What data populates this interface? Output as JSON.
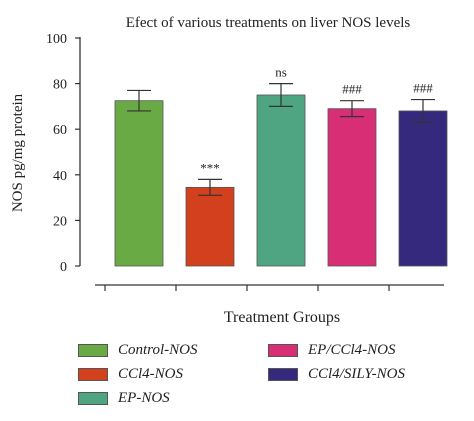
{
  "chart_data": {
    "type": "bar",
    "title": "Efect of various treatments on liver NOS levels",
    "xlabel": "Treatment Groups",
    "ylabel": "NOS pg/mg protein",
    "ylim": [
      0,
      100
    ],
    "yticks": [
      0,
      20,
      40,
      60,
      80,
      100
    ],
    "grid": false,
    "legend_position": "bottom",
    "categories": [
      "Control-NOS",
      "CCl4-NOS",
      "EP-NOS",
      "EP/CCl4-NOS",
      "CCl4/SILY-NOS"
    ],
    "values": [
      72.5,
      34.5,
      75,
      69,
      68
    ],
    "errors": [
      4.5,
      3.5,
      5,
      3.5,
      5
    ],
    "annotations": [
      "",
      "***",
      "ns",
      "###",
      "###"
    ],
    "colors": [
      "#6aaa45",
      "#d2401e",
      "#4fa582",
      "#d82e76",
      "#35297e"
    ]
  }
}
